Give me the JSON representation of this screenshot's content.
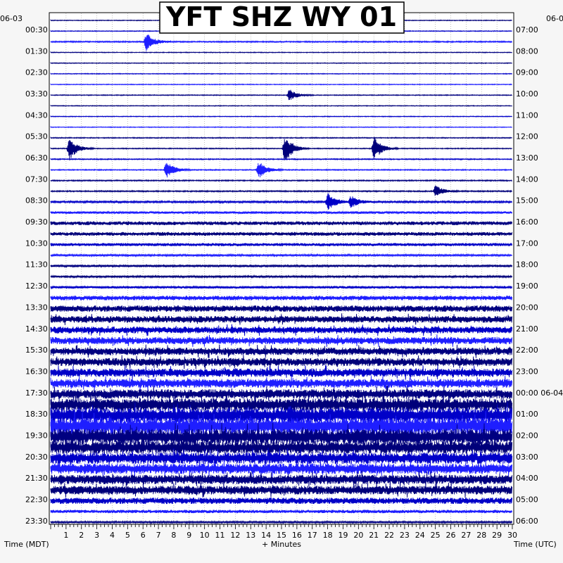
{
  "chart_data": {
    "type": "helicorder",
    "title": "YFT SHZ WY 01",
    "left_date": "06-03",
    "right_date": "06-0",
    "left_axis_label": "Time (MDT)",
    "right_axis_label": "Time (UTC)",
    "x_axis_label": "+ Minutes",
    "x_ticks": [
      "1",
      "2",
      "3",
      "4",
      "5",
      "6",
      "7",
      "8",
      "9",
      "10",
      "11",
      "12",
      "13",
      "14",
      "15",
      "16",
      "17",
      "18",
      "19",
      "20",
      "21",
      "22",
      "23",
      "24",
      "25",
      "26",
      "27",
      "28",
      "29",
      "30"
    ],
    "xlim": [
      0,
      30
    ],
    "trace_count": 48,
    "trace_colors": [
      "#00007a",
      "#0000c8",
      "#1e1eff",
      "#000080"
    ],
    "rows": [
      {
        "left": "00:30",
        "right": "07:00"
      },
      {
        "left": "01:30",
        "right": "08:00"
      },
      {
        "left": "02:30",
        "right": "09:00"
      },
      {
        "left": "03:30",
        "right": "10:00"
      },
      {
        "left": "04:30",
        "right": "11:00"
      },
      {
        "left": "05:30",
        "right": "12:00"
      },
      {
        "left": "06:30",
        "right": "13:00"
      },
      {
        "left": "07:30",
        "right": "14:00"
      },
      {
        "left": "08:30",
        "right": "15:00"
      },
      {
        "left": "09:30",
        "right": "16:00"
      },
      {
        "left": "10:30",
        "right": "17:00"
      },
      {
        "left": "11:30",
        "right": "18:00"
      },
      {
        "left": "12:30",
        "right": "19:00"
      },
      {
        "left": "13:30",
        "right": "20:00"
      },
      {
        "left": "14:30",
        "right": "21:00"
      },
      {
        "left": "15:30",
        "right": "22:00"
      },
      {
        "left": "16:30",
        "right": "23:00"
      },
      {
        "left": "17:30",
        "right": "00:00 06-04"
      },
      {
        "left": "18:30",
        "right": "01:00"
      },
      {
        "left": "19:30",
        "right": "02:00"
      },
      {
        "left": "20:30",
        "right": "03:00"
      },
      {
        "left": "21:30",
        "right": "04:00"
      },
      {
        "left": "22:30",
        "right": "05:00"
      },
      {
        "left": "23:30",
        "right": "06:00"
      }
    ],
    "events": [
      {
        "trace": 2,
        "minute": 6.2,
        "amplitude": 3
      },
      {
        "trace": 7,
        "minute": 15.5,
        "amplitude": 2
      },
      {
        "trace": 12,
        "minute": 1.2,
        "amplitude": 4
      },
      {
        "trace": 12,
        "minute": 15.2,
        "amplitude": 5
      },
      {
        "trace": 12,
        "minute": 21.0,
        "amplitude": 4
      },
      {
        "trace": 14,
        "minute": 7.5,
        "amplitude": 3
      },
      {
        "trace": 14,
        "minute": 13.5,
        "amplitude": 3
      },
      {
        "trace": 16,
        "minute": 25.0,
        "amplitude": 2
      },
      {
        "trace": 17,
        "minute": 18.0,
        "amplitude": 3
      },
      {
        "trace": 17,
        "minute": 19.5,
        "amplitude": 2
      },
      {
        "trace": 37,
        "minute": 15.5,
        "amplitude": 1.5
      }
    ],
    "noise_levels": [
      0.35,
      0.35,
      0.6,
      0.35,
      0.35,
      0.35,
      0.35,
      0.4,
      0.35,
      0.35,
      0.35,
      0.45,
      0.45,
      0.5,
      0.5,
      0.55,
      0.6,
      0.9,
      1.2,
      1.8,
      1.8,
      1.5,
      0.9,
      1.1,
      0.9,
      1.2,
      2.2,
      3.0,
      3.2,
      3.2,
      3.4,
      3.6,
      3.8,
      4.0,
      4.2,
      4.5,
      6.0,
      7.5,
      8.0,
      7.5,
      6.0,
      5.5,
      5.0,
      4.5,
      4.2,
      3.0,
      1.6,
      0.9
    ]
  }
}
